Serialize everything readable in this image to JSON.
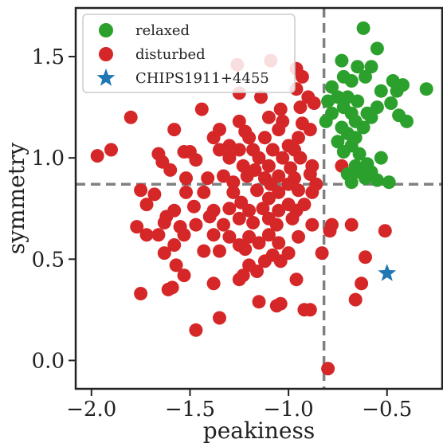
{
  "chart_data": {
    "type": "scatter",
    "title": "",
    "xlabel": "peakiness",
    "ylabel": "symmetry",
    "xlim": [
      -2.08,
      -0.22
    ],
    "ylim": [
      -0.14,
      1.74
    ],
    "xticks": [
      -2.0,
      -1.5,
      -1.0,
      -0.5
    ],
    "xtick_labels": [
      "−2.0",
      "−1.5",
      "−1.0",
      "−0.5"
    ],
    "yticks": [
      0.0,
      0.5,
      1.0,
      1.5
    ],
    "ytick_labels": [
      "0.0",
      "0.5",
      "1.0",
      "1.5"
    ],
    "grid": false,
    "legend_position": "top-left",
    "thresholds": {
      "x": -0.82,
      "y": 0.87
    },
    "colors": {
      "relaxed": "#2ca02c",
      "disturbed": "#d62728",
      "target": "#1f77b4",
      "threshold": "#808080"
    },
    "series": [
      {
        "name": "relaxed",
        "marker": "circle",
        "points": [
          [
            -0.62,
            1.64
          ],
          [
            -0.55,
            1.54
          ],
          [
            -0.73,
            1.48
          ],
          [
            -0.65,
            1.45
          ],
          [
            -0.58,
            1.45
          ],
          [
            -0.72,
            1.4
          ],
          [
            -0.61,
            1.4
          ],
          [
            -0.78,
            1.35
          ],
          [
            -0.68,
            1.38
          ],
          [
            -0.47,
            1.38
          ],
          [
            -0.42,
            1.36
          ],
          [
            -0.3,
            1.34
          ],
          [
            -0.45,
            1.33
          ],
          [
            -0.53,
            1.33
          ],
          [
            -0.75,
            1.3
          ],
          [
            -0.7,
            1.3
          ],
          [
            -0.8,
            1.28
          ],
          [
            -0.65,
            1.28
          ],
          [
            -0.72,
            1.25
          ],
          [
            -0.48,
            1.27
          ],
          [
            -0.78,
            1.22
          ],
          [
            -0.68,
            1.22
          ],
          [
            -0.6,
            1.22
          ],
          [
            -0.55,
            1.25
          ],
          [
            -0.44,
            1.21
          ],
          [
            -0.81,
            1.18
          ],
          [
            -0.66,
            1.18
          ],
          [
            -0.4,
            1.18
          ],
          [
            -0.73,
            1.15
          ],
          [
            -0.62,
            1.15
          ],
          [
            -0.58,
            1.2
          ],
          [
            -0.7,
            1.12
          ],
          [
            -0.66,
            1.1
          ],
          [
            -0.75,
            1.08
          ],
          [
            -0.68,
            1.06
          ],
          [
            -0.72,
            1.03
          ],
          [
            -0.64,
            1.02
          ],
          [
            -0.53,
            1.0
          ],
          [
            -0.6,
            0.97
          ],
          [
            -0.66,
            0.96
          ],
          [
            -0.64,
            0.93
          ],
          [
            -0.58,
            0.93
          ],
          [
            -0.7,
            0.92
          ],
          [
            -0.61,
            0.9
          ],
          [
            -0.55,
            0.89
          ],
          [
            -0.68,
            0.88
          ],
          [
            -0.49,
            0.88
          ]
        ]
      },
      {
        "name": "disturbed",
        "marker": "circle",
        "points": [
          [
            -1.26,
            1.46
          ],
          [
            -1.09,
            1.48
          ],
          [
            -0.96,
            1.44
          ],
          [
            -0.93,
            1.4
          ],
          [
            -0.96,
            1.34
          ],
          [
            -1.25,
            1.32
          ],
          [
            -1.14,
            1.3
          ],
          [
            -0.9,
            1.3
          ],
          [
            -1.44,
            1.24
          ],
          [
            -1.04,
            1.24
          ],
          [
            -0.94,
            1.25
          ],
          [
            -0.87,
            1.27
          ],
          [
            -1.8,
            1.2
          ],
          [
            -1.25,
            1.18
          ],
          [
            -1.1,
            1.2
          ],
          [
            -1.03,
            1.18
          ],
          [
            -0.93,
            1.17
          ],
          [
            -1.58,
            1.14
          ],
          [
            -1.35,
            1.14
          ],
          [
            -1.22,
            1.13
          ],
          [
            -1.05,
            1.14
          ],
          [
            -0.89,
            1.14
          ],
          [
            -1.38,
            1.1
          ],
          [
            -1.2,
            1.1
          ],
          [
            -1.12,
            1.1
          ],
          [
            -0.95,
            1.1
          ],
          [
            -1.3,
            1.06
          ],
          [
            -1.0,
            1.06
          ],
          [
            -1.9,
            1.04
          ],
          [
            -1.66,
            1.02
          ],
          [
            -1.53,
            1.03
          ],
          [
            -1.5,
            1.03
          ],
          [
            -1.35,
            1.04
          ],
          [
            -1.25,
            1.04
          ],
          [
            -1.18,
            1.04
          ],
          [
            -1.08,
            1.04
          ],
          [
            -0.97,
            1.04
          ],
          [
            -1.97,
            1.01
          ],
          [
            -1.64,
            0.98
          ],
          [
            -1.47,
            0.99
          ],
          [
            -1.3,
            1.0
          ],
          [
            -1.15,
            1.0
          ],
          [
            -1.03,
            1.0
          ],
          [
            -0.94,
            1.0
          ],
          [
            -1.6,
            0.94
          ],
          [
            -1.23,
            0.96
          ],
          [
            -1.17,
            0.94
          ],
          [
            -1.1,
            0.96
          ],
          [
            -0.99,
            0.95
          ],
          [
            -0.88,
            0.96
          ],
          [
            -1.52,
            0.9
          ],
          [
            -1.41,
            0.9
          ],
          [
            -1.33,
            0.91
          ],
          [
            -1.21,
            0.91
          ],
          [
            -1.12,
            0.9
          ],
          [
            -1.05,
            0.91
          ],
          [
            -0.97,
            0.9
          ],
          [
            -0.89,
            0.92
          ],
          [
            -1.28,
            0.88
          ],
          [
            -1.09,
            0.87
          ],
          [
            -1.0,
            0.87
          ],
          [
            -0.86,
            0.87
          ],
          [
            -1.75,
            0.84
          ],
          [
            -1.68,
            0.82
          ],
          [
            -1.52,
            0.83
          ],
          [
            -1.43,
            0.83
          ],
          [
            -1.28,
            0.83
          ],
          [
            -1.16,
            0.84
          ],
          [
            -1.05,
            0.83
          ],
          [
            -0.95,
            0.84
          ],
          [
            -0.88,
            0.83
          ],
          [
            -1.1,
            0.8
          ],
          [
            -1.24,
            0.78
          ],
          [
            -1.0,
            0.77
          ],
          [
            -0.92,
            0.77
          ],
          [
            -1.72,
            0.77
          ],
          [
            -1.58,
            0.74
          ],
          [
            -1.48,
            0.76
          ],
          [
            -1.38,
            0.74
          ],
          [
            -1.3,
            0.75
          ],
          [
            -1.2,
            0.74
          ],
          [
            -1.13,
            0.75
          ],
          [
            -1.05,
            0.74
          ],
          [
            -0.96,
            0.74
          ],
          [
            -1.62,
            0.71
          ],
          [
            -1.4,
            0.71
          ],
          [
            -1.25,
            0.7
          ],
          [
            -1.1,
            0.7
          ],
          [
            -0.98,
            0.7
          ],
          [
            -1.77,
            0.66
          ],
          [
            -1.63,
            0.68
          ],
          [
            -1.55,
            0.66
          ],
          [
            -1.47,
            0.67
          ],
          [
            -1.33,
            0.67
          ],
          [
            -1.18,
            0.68
          ],
          [
            -1.06,
            0.67
          ],
          [
            -0.88,
            0.67
          ],
          [
            -1.72,
            0.62
          ],
          [
            -1.66,
            0.62
          ],
          [
            -1.53,
            0.62
          ],
          [
            -1.38,
            0.62
          ],
          [
            -1.3,
            0.61
          ],
          [
            -1.2,
            0.61
          ],
          [
            -1.1,
            0.62
          ],
          [
            -0.95,
            0.61
          ],
          [
            -1.25,
            0.57
          ],
          [
            -1.15,
            0.58
          ],
          [
            -1.05,
            0.58
          ],
          [
            -1.58,
            0.57
          ],
          [
            -1.63,
            0.53
          ],
          [
            -1.43,
            0.54
          ],
          [
            -1.35,
            0.54
          ],
          [
            -1.22,
            0.55
          ],
          [
            -1.08,
            0.52
          ],
          [
            -1.0,
            0.53
          ],
          [
            -0.83,
            0.53
          ],
          [
            -1.57,
            0.47
          ],
          [
            -1.2,
            0.47
          ],
          [
            -1.12,
            0.49
          ],
          [
            -1.04,
            0.49
          ],
          [
            -1.53,
            0.42
          ],
          [
            -1.23,
            0.42
          ],
          [
            -1.16,
            0.44
          ],
          [
            -1.25,
            0.4
          ],
          [
            -1.38,
            0.38
          ],
          [
            -0.96,
            0.4
          ],
          [
            -1.61,
            0.35
          ],
          [
            -1.59,
            0.36
          ],
          [
            -1.75,
            0.33
          ],
          [
            -1.15,
            0.29
          ],
          [
            -1.04,
            0.28
          ],
          [
            -1.06,
            0.27
          ],
          [
            -0.89,
            0.25
          ],
          [
            -0.92,
            0.25
          ],
          [
            -1.35,
            0.21
          ],
          [
            -1.47,
            0.15
          ],
          [
            -0.73,
            0.96
          ],
          [
            -0.78,
            0.67
          ],
          [
            -0.68,
            0.67
          ],
          [
            -0.79,
            0.64
          ],
          [
            -0.51,
            0.64
          ],
          [
            -0.61,
            0.51
          ],
          [
            -0.63,
            0.38
          ],
          [
            -0.66,
            0.3
          ],
          [
            -0.8,
            -0.04
          ]
        ]
      },
      {
        "name": "CHIPS1911+4455",
        "marker": "star",
        "points": [
          [
            -0.5,
            0.43
          ]
        ]
      }
    ]
  }
}
